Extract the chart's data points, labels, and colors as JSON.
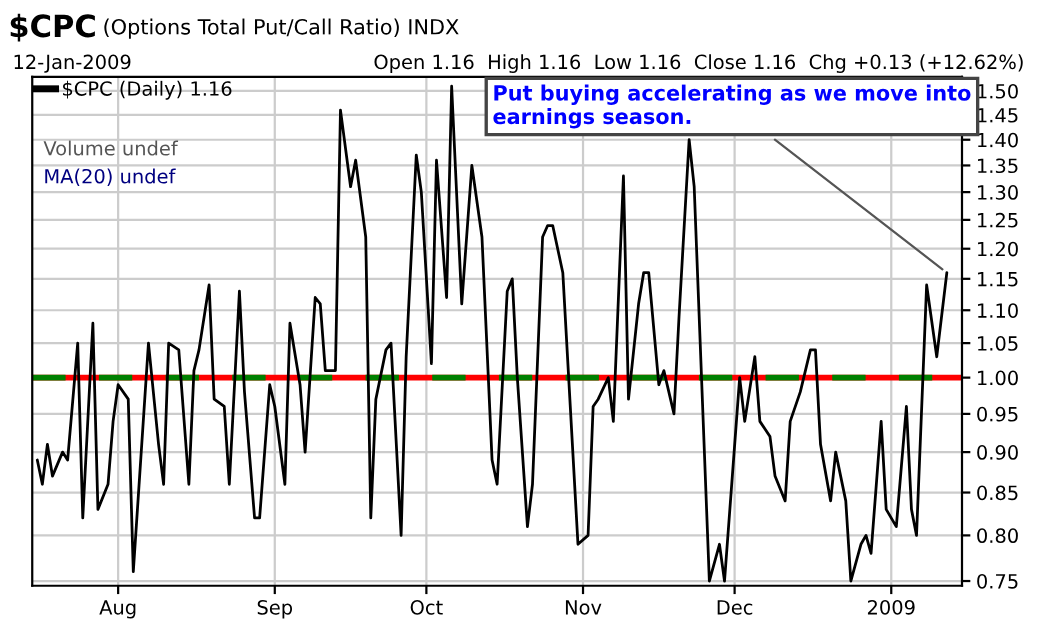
{
  "chart_data": {
    "type": "line",
    "title": "$CPC",
    "subtitle": "(Options Total Put/Call Ratio) INDX",
    "annotations": [
      "12-Jan-2009",
      "Open 1.16  High 1.16  Low 1.16  Close 1.16  Chg +0.13 (+12.62%)",
      "Volume undef",
      "MA(20) undef",
      {
        "text": "Put buying accelerating as we move into earnings season.",
        "x": "2009-01-12",
        "y": 1.16
      }
    ],
    "x": [
      "2008-07-16",
      "2008-07-17",
      "2008-07-18",
      "2008-07-19",
      "2008-07-21",
      "2008-07-22",
      "2008-07-24",
      "2008-07-25",
      "2008-07-27",
      "2008-07-28",
      "2008-07-30",
      "2008-07-31",
      "2008-08-01",
      "2008-08-03",
      "2008-08-04",
      "2008-08-07",
      "2008-08-09",
      "2008-08-10",
      "2008-08-11",
      "2008-08-13",
      "2008-08-15",
      "2008-08-16",
      "2008-08-17",
      "2008-08-19",
      "2008-08-20",
      "2008-08-22",
      "2008-08-23",
      "2008-08-25",
      "2008-08-26",
      "2008-08-28",
      "2008-08-29",
      "2008-08-31",
      "2008-09-01",
      "2008-09-03",
      "2008-09-04",
      "2008-09-06",
      "2008-09-07",
      "2008-09-09",
      "2008-09-10",
      "2008-09-11",
      "2008-09-13",
      "2008-09-14",
      "2008-09-16",
      "2008-09-17",
      "2008-09-19",
      "2008-09-20",
      "2008-09-21",
      "2008-09-23",
      "2008-09-24",
      "2008-09-26",
      "2008-09-27",
      "2008-09-29",
      "2008-09-30",
      "2008-10-02",
      "2008-10-03",
      "2008-10-05",
      "2008-10-06",
      "2008-10-08",
      "2008-10-10",
      "2008-10-12",
      "2008-10-14",
      "2008-10-15",
      "2008-10-17",
      "2008-10-18",
      "2008-10-19",
      "2008-10-21",
      "2008-10-22",
      "2008-10-24",
      "2008-10-25",
      "2008-10-26",
      "2008-10-28",
      "2008-10-31",
      "2008-11-02",
      "2008-11-03",
      "2008-11-04",
      "2008-11-06",
      "2008-11-07",
      "2008-11-09",
      "2008-11-10",
      "2008-11-12",
      "2008-11-13",
      "2008-11-14",
      "2008-11-16",
      "2008-11-17",
      "2008-11-19",
      "2008-11-20",
      "2008-11-22",
      "2008-11-23",
      "2008-11-26",
      "2008-11-28",
      "2008-11-29",
      "2008-12-02",
      "2008-12-03",
      "2008-12-05",
      "2008-12-06",
      "2008-12-08",
      "2008-12-09",
      "2008-12-11",
      "2008-12-12",
      "2008-12-14",
      "2008-12-16",
      "2008-12-17",
      "2008-12-18",
      "2008-12-20",
      "2008-12-21",
      "2008-12-23",
      "2008-12-24",
      "2008-12-26",
      "2008-12-27",
      "2008-12-28",
      "2008-12-30",
      "2008-12-31",
      "2009-01-02",
      "2009-01-04",
      "2009-01-05",
      "2009-01-06",
      "2009-01-08",
      "2009-01-10",
      "2009-01-12"
    ],
    "series": [
      {
        "name": "$CPC (Daily) 1.16",
        "color": "#000000",
        "values": [
          0.89,
          0.86,
          0.91,
          0.87,
          0.9,
          0.89,
          1.05,
          0.82,
          1.08,
          0.83,
          0.86,
          0.94,
          0.99,
          0.97,
          0.76,
          1.05,
          0.91,
          0.86,
          1.05,
          1.04,
          0.86,
          1.01,
          1.04,
          1.14,
          0.97,
          0.96,
          0.86,
          1.13,
          0.98,
          0.82,
          0.82,
          0.99,
          0.96,
          0.86,
          1.08,
          0.99,
          0.9,
          1.12,
          1.11,
          1.01,
          1.01,
          1.46,
          1.31,
          1.36,
          1.22,
          0.82,
          0.97,
          1.04,
          1.05,
          0.8,
          1.03,
          1.37,
          1.3,
          1.02,
          1.36,
          1.12,
          1.51,
          1.11,
          1.35,
          1.22,
          0.89,
          0.86,
          1.13,
          1.15,
          1.0,
          0.81,
          0.86,
          1.22,
          1.24,
          1.24,
          1.16,
          0.79,
          0.8,
          0.96,
          0.97,
          1.0,
          0.94,
          1.33,
          0.97,
          1.11,
          1.16,
          1.16,
          0.99,
          1.01,
          0.95,
          1.09,
          1.4,
          1.31,
          0.75,
          0.79,
          0.75,
          1.0,
          0.94,
          1.03,
          0.94,
          0.92,
          0.87,
          0.84,
          0.94,
          0.98,
          1.04,
          1.04,
          0.91,
          0.84,
          0.9,
          0.84,
          0.75,
          0.79,
          0.8,
          0.78,
          0.94,
          0.83,
          0.81,
          0.96,
          0.83,
          0.8,
          1.14,
          1.03,
          1.16
        ],
        "marker": "none"
      }
    ],
    "xlim": [
      "2008-07-15",
      "2009-01-15"
    ],
    "xticks": [
      {
        "value": "2008-08-01",
        "label": "Aug"
      },
      {
        "value": "2008-09-01",
        "label": "Sep"
      },
      {
        "value": "2008-10-01",
        "label": "Oct"
      },
      {
        "value": "2008-11-01",
        "label": "Nov"
      },
      {
        "value": "2008-12-01",
        "label": "Dec"
      },
      {
        "value": "2009-01-01",
        "label": "2009"
      }
    ],
    "ylim": [
      0.745,
      1.53
    ],
    "log": true,
    "yticks": [
      {
        "value": 0.75,
        "label": "0.75"
      },
      {
        "value": 0.8,
        "label": "0.80"
      },
      {
        "value": 0.85,
        "label": "0.85"
      },
      {
        "value": 0.9,
        "label": "0.90"
      },
      {
        "value": 0.95,
        "label": "0.95"
      },
      {
        "value": 1.0,
        "label": "1.00"
      },
      {
        "value": 1.05,
        "label": "1.05"
      },
      {
        "value": 1.1,
        "label": "1.10"
      },
      {
        "value": 1.15,
        "label": "1.15"
      },
      {
        "value": 1.2,
        "label": "1.20"
      },
      {
        "value": 1.25,
        "label": "1.25"
      },
      {
        "value": 1.3,
        "label": "1.30"
      },
      {
        "value": 1.35,
        "label": "1.35"
      },
      {
        "value": 1.4,
        "label": "1.40"
      },
      {
        "value": 1.45,
        "label": "1.45"
      },
      {
        "value": 1.5,
        "label": "1.50"
      }
    ],
    "ref_lines": [
      {
        "axis": "y",
        "value": 1.0,
        "color": "#ff0000"
      },
      {
        "axis": "y",
        "value": 1.0,
        "color": "#008000",
        "line_style": "dashed"
      }
    ],
    "grid": true,
    "legend": "top left"
  }
}
